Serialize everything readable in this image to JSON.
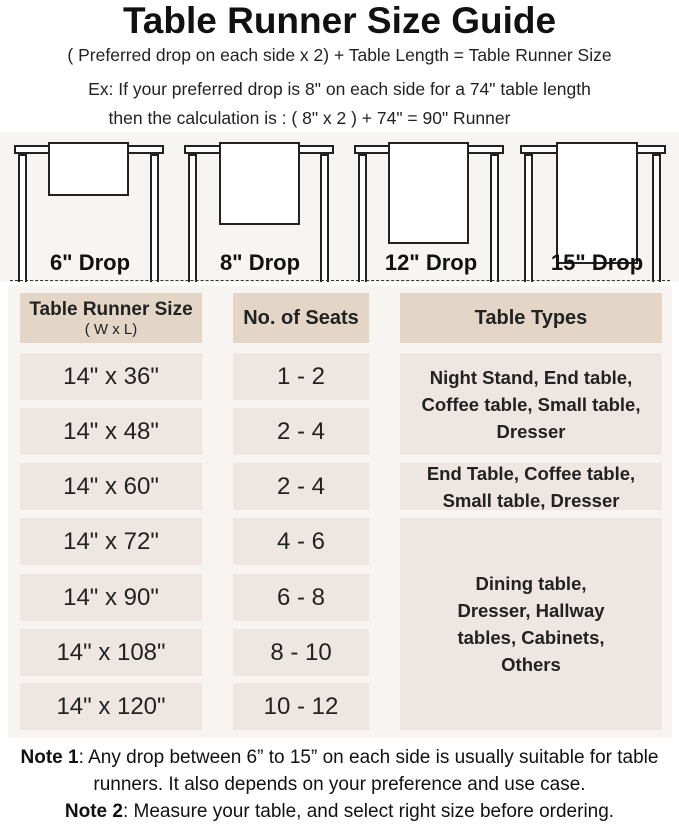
{
  "title": "Table Runner Size Guide",
  "formula": "( Preferred drop on each side x 2) + Table Length = Table Runner Size",
  "example_line1": "Ex: If your preferred drop is 8\" on each side for a 74\" table length",
  "example_line2": "then the calculation is : ( 8\" x 2 ) + 74\" = 90\" Runner",
  "drops": [
    "6\" Drop",
    "8\" Drop",
    "12\" Drop",
    "15\" Drop"
  ],
  "table": {
    "headers": {
      "size": "Table Runner Size",
      "size_sub": "( W x L)",
      "seats": "No. of Seats",
      "types": "Table Types"
    },
    "sizes": [
      "14\" x 36\"",
      "14\" x 48\"",
      "14\" x 60\"",
      "14\" x 72\"",
      "14\" x 90\"",
      "14\" x 108\"",
      "14\" x 120\""
    ],
    "seats": [
      "1 - 2",
      "2 - 4",
      "2 - 4",
      "4 - 6",
      "6 - 8",
      "8 - 10",
      "10 - 12"
    ],
    "types": [
      "Night Stand, End table, Coffee table, Small table, Dresser",
      "End Table, Coffee table, Small table, Dresser",
      "Dining table, Dresser, Hallway tables, Cabinets, Others"
    ]
  },
  "notes": [
    {
      "label": "Note 1",
      "text": ": Any drop between 6” to 15” on each side is usually suitable for table runners. It also depends on your preference and use case."
    },
    {
      "label": "Note 2",
      "text": ": Measure your table, and select right size before ordering."
    }
  ],
  "colors": {
    "header": "#e3d6c6",
    "cell": "#eee6e2",
    "panel": "#f8f4f2"
  }
}
